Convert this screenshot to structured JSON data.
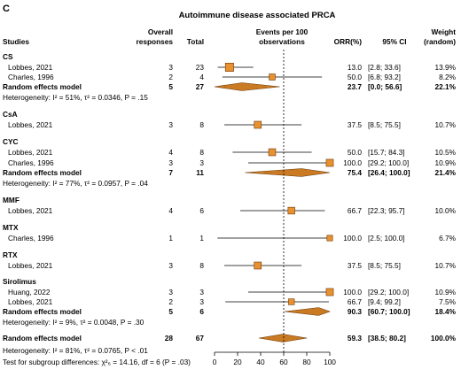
{
  "panel_letter": "C",
  "title": "Autoimmune disease associated PRCA",
  "headers": {
    "studies": "Studies",
    "overall_1": "Overall",
    "overall_2": "responses",
    "total": "Total",
    "events_1": "Events per 100",
    "events_2": "observations",
    "orr": "ORR(%)",
    "ci": "95% CI",
    "weight_1": "Weight",
    "weight_2": "(random)"
  },
  "colors": {
    "box_fill": "#e8912e",
    "box_stroke": "#6b3a0c",
    "diamond_fill": "#c97a22",
    "diamond_stroke": "#6b3a0c",
    "line": "#000000"
  },
  "chart_data": {
    "type": "forest",
    "xlim": [
      0,
      100
    ],
    "x_ticks": [
      0,
      20,
      40,
      60,
      80,
      100
    ],
    "reference_line": 60,
    "groups": [
      {
        "name": "CS",
        "studies": [
          {
            "label": "Lobbes, 2021",
            "responses": "3",
            "total": "23",
            "est": 13.0,
            "lo": 2.8,
            "hi": 33.6,
            "orr": "13.0",
            "ci": "[2.8; 33.6]",
            "weight": "13.9%"
          },
          {
            "label": "Charles, 1996",
            "responses": "2",
            "total": "4",
            "est": 50.0,
            "lo": 6.8,
            "hi": 93.2,
            "orr": "50.0",
            "ci": "[6.8; 93.2]",
            "weight": "8.2%"
          }
        ],
        "summary": {
          "label": "Random effects model",
          "responses": "5",
          "total": "27",
          "est": 23.7,
          "lo": 0.0,
          "hi": 56.6,
          "orr": "23.7",
          "ci": "[0.0; 56.6]",
          "weight": "22.1%"
        },
        "heterogeneity": "Heterogeneity: I² = 51%, τ² = 0.0346, P = .15"
      },
      {
        "name": "CsA",
        "studies": [
          {
            "label": "Lobbes, 2021",
            "responses": "3",
            "total": "8",
            "est": 37.5,
            "lo": 8.5,
            "hi": 75.5,
            "orr": "37.5",
            "ci": "[8.5; 75.5]",
            "weight": "10.7%"
          }
        ]
      },
      {
        "name": "CYC",
        "studies": [
          {
            "label": "Lobbes, 2021",
            "responses": "4",
            "total": "8",
            "est": 50.0,
            "lo": 15.7,
            "hi": 84.3,
            "orr": "50.0",
            "ci": "[15.7; 84.3]",
            "weight": "10.5%"
          },
          {
            "label": "Charles, 1996",
            "responses": "3",
            "total": "3",
            "est": 100.0,
            "lo": 29.2,
            "hi": 100.0,
            "orr": "100.0",
            "ci": "[29.2; 100.0]",
            "weight": "10.9%"
          }
        ],
        "summary": {
          "label": "Random effects model",
          "responses": "7",
          "total": "11",
          "est": 75.4,
          "lo": 26.4,
          "hi": 100.0,
          "orr": "75.4",
          "ci": "[26.4; 100.0]",
          "weight": "21.4%"
        },
        "heterogeneity": "Heterogeneity: I² = 77%, τ² = 0.0957, P = .04"
      },
      {
        "name": "MMF",
        "studies": [
          {
            "label": "Lobbes, 2021",
            "responses": "4",
            "total": "6",
            "est": 66.7,
            "lo": 22.3,
            "hi": 95.7,
            "orr": "66.7",
            "ci": "[22.3; 95.7]",
            "weight": "10.0%"
          }
        ]
      },
      {
        "name": "MTX",
        "studies": [
          {
            "label": "Charles, 1996",
            "responses": "1",
            "total": "1",
            "est": 100.0,
            "lo": 2.5,
            "hi": 100.0,
            "orr": "100.0",
            "ci": "[2.5; 100.0]",
            "weight": "6.7%"
          }
        ]
      },
      {
        "name": "RTX",
        "studies": [
          {
            "label": "Lobbes, 2021",
            "responses": "3",
            "total": "8",
            "est": 37.5,
            "lo": 8.5,
            "hi": 75.5,
            "orr": "37.5",
            "ci": "[8.5; 75.5]",
            "weight": "10.7%"
          }
        ]
      },
      {
        "name": "Sirolimus",
        "studies": [
          {
            "label": "Huang, 2022",
            "responses": "3",
            "total": "3",
            "est": 100.0,
            "lo": 29.2,
            "hi": 100.0,
            "orr": "100.0",
            "ci": "[29.2; 100.0]",
            "weight": "10.9%"
          },
          {
            "label": "Lobbes, 2021",
            "responses": "2",
            "total": "3",
            "est": 66.7,
            "lo": 9.4,
            "hi": 99.2,
            "orr": "66.7",
            "ci": "[9.4; 99.2]",
            "weight": "7.5%"
          }
        ],
        "summary": {
          "label": "Random effects model",
          "responses": "5",
          "total": "6",
          "est": 90.3,
          "lo": 60.7,
          "hi": 100.0,
          "orr": "90.3",
          "ci": "[60.7; 100.0]",
          "weight": "18.4%"
        },
        "heterogeneity": "Heterogeneity: I² = 9%, τ² = 0.0048, P = .30"
      }
    ],
    "overall": {
      "label": "Random effects model",
      "responses": "28",
      "total": "67",
      "est": 59.3,
      "lo": 38.5,
      "hi": 80.2,
      "orr": "59.3",
      "ci": "[38.5; 80.2]",
      "weight": "100.0%"
    },
    "overall_heterogeneity": "Heterogeneity: I² = 81%, τ² = 0.0765, P < .01",
    "subgroup_test": "Test for subgroup differences: χ²₆ = 14.16, df = 6 (P = .03)"
  }
}
